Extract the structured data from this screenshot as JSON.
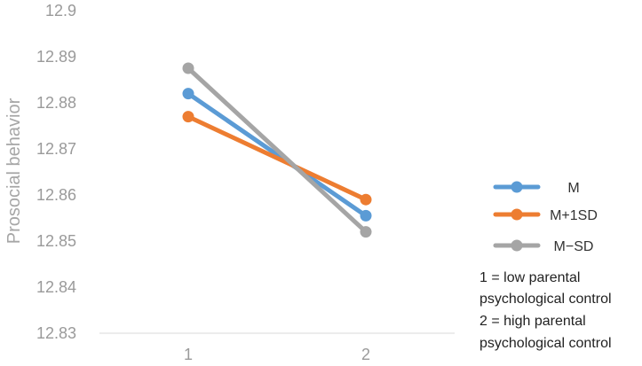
{
  "chart_data": {
    "type": "line",
    "ylabel": "Prosocial behavior",
    "xlabel": "",
    "categories": [
      "1",
      "2"
    ],
    "ylim": [
      12.83,
      12.9
    ],
    "yticks": [
      "12.83",
      "12.84",
      "12.85",
      "12.86",
      "12.87",
      "12.88",
      "12.89",
      "12.9"
    ],
    "grid": false,
    "legend_position": "right",
    "series": [
      {
        "name": "M",
        "color": "#5b9bd5",
        "values": [
          12.882,
          12.8555
        ]
      },
      {
        "name": "M+1SD",
        "color": "#ed7d31",
        "values": [
          12.877,
          12.859
        ]
      },
      {
        "name": "M−SD",
        "color": "#a5a5a5",
        "values": [
          12.8875,
          12.852
        ]
      }
    ],
    "notes": [
      "1 = low parental",
      "psychological control",
      "2 = high parental",
      "psychological control"
    ]
  }
}
